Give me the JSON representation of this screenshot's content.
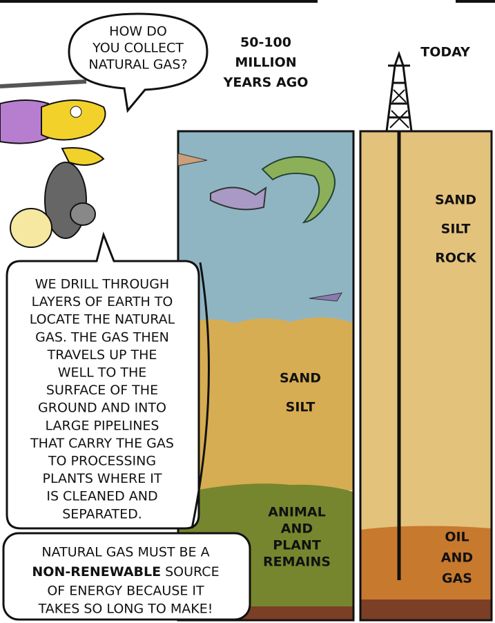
{
  "question": {
    "lines": [
      "HOW DO",
      "YOU COLLECT",
      "NATURAL GAS?"
    ]
  },
  "time_labels": {
    "past": [
      "50-100",
      "MILLION",
      "YEARS AGO"
    ],
    "today": "TODAY"
  },
  "layers_past": {
    "sand_silt": [
      "SAND",
      "SILT"
    ],
    "remains": [
      "ANIMAL",
      "AND",
      "PLANT",
      "REMAINS"
    ]
  },
  "layers_today": {
    "sand_silt_rock": [
      "SAND",
      "SILT",
      "ROCK"
    ],
    "oil_gas": [
      "OIL",
      "AND",
      "GAS"
    ]
  },
  "explanation": {
    "lines": [
      "WE DRILL THROUGH",
      "LAYERS OF EARTH TO",
      "LOCATE THE NATURAL",
      "GAS. THE GAS THEN",
      "TRAVELS UP THE",
      "WELL TO THE",
      "SURFACE OF THE",
      "GROUND AND INTO",
      "LARGE PIPELINES",
      "THAT CARRY THE GAS",
      "TO PROCESSING",
      "PLANTS WHERE IT",
      "IS CLEANED AND",
      "SEPARATED."
    ]
  },
  "conclusion": {
    "line1": "NATURAL GAS MUST BE A",
    "bold": "NON-RENEWABLE",
    "after_bold": "SOURCE",
    "line3": "OF ENERGY BECAUSE IT",
    "line4": "TAKES SO LONG TO MAKE!"
  }
}
